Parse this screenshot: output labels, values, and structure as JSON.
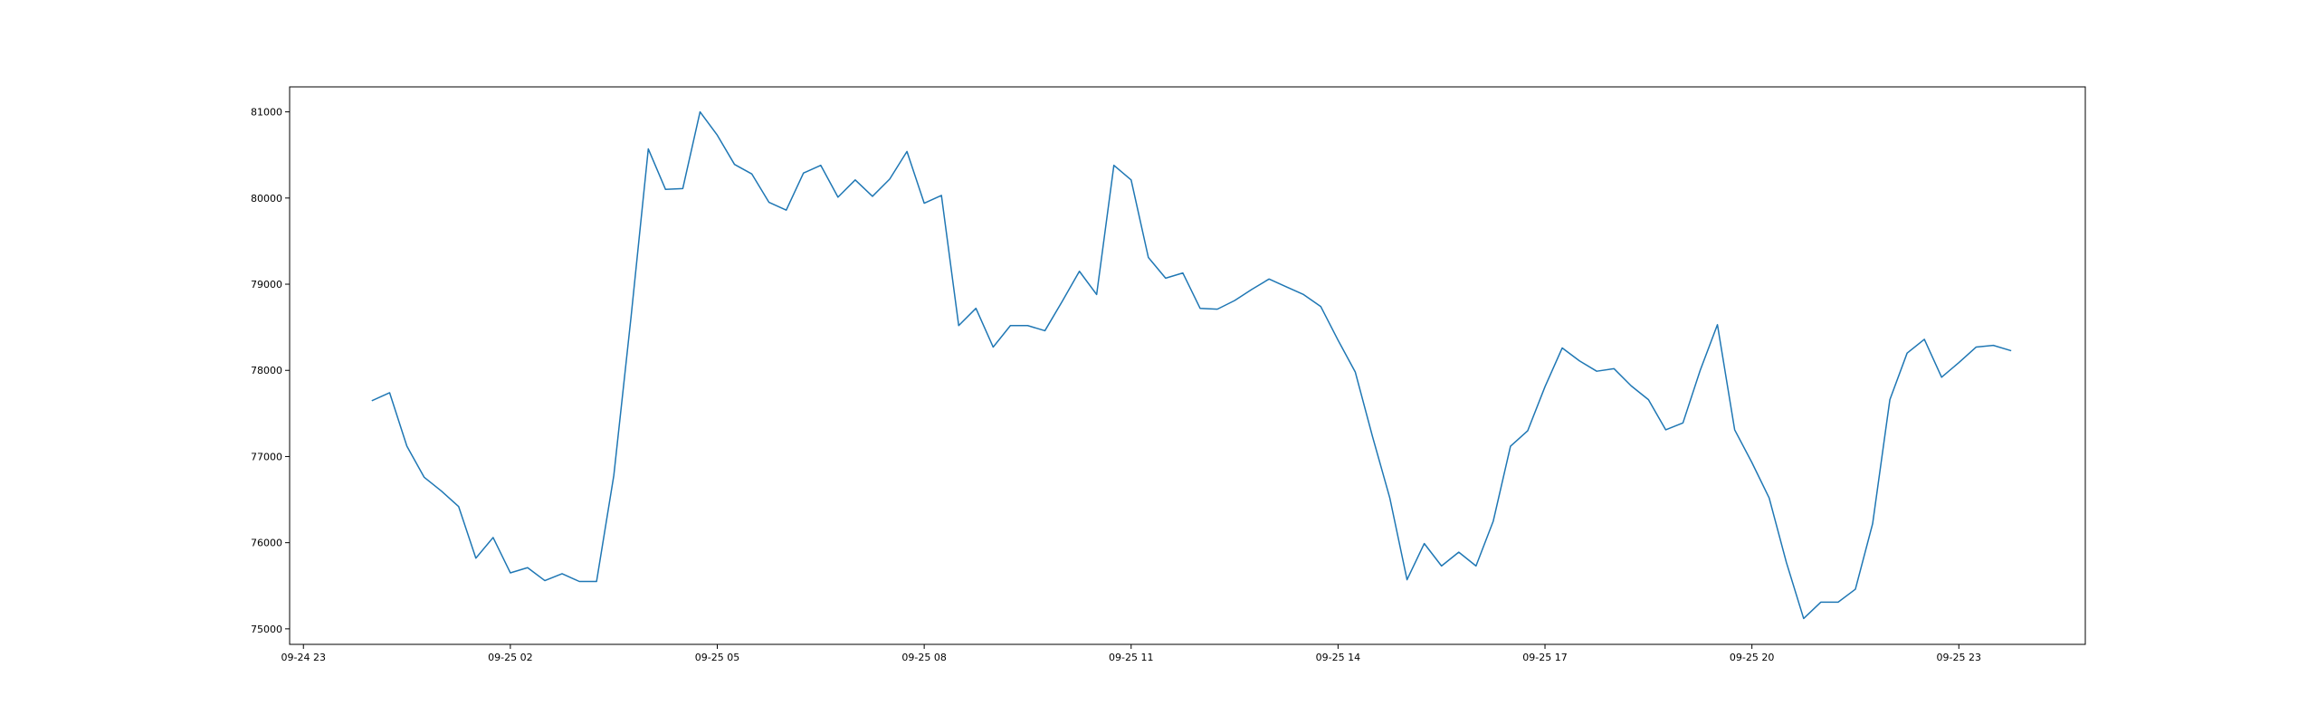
{
  "chart_data": {
    "type": "line",
    "title": "",
    "xlabel": "",
    "ylabel": "",
    "x_ticks": [
      "09-24 23",
      "09-25 02",
      "09-25 05",
      "09-25 08",
      "09-25 11",
      "09-25 14",
      "09-25 17",
      "09-25 20",
      "09-25 23"
    ],
    "y_ticks": [
      75000,
      76000,
      77000,
      78000,
      79000,
      80000,
      81000
    ],
    "x_range": [
      "2024-09-24 22:48",
      "2024-09-26 00:50"
    ],
    "ylim": [
      74820,
      81290
    ],
    "grid": false,
    "legend": "none",
    "line_color": "#1f77b4",
    "series": [
      {
        "x": [
          "2024-09-25 00:00",
          "2024-09-25 00:15",
          "2024-09-25 00:30",
          "2024-09-25 00:45",
          "2024-09-25 01:00",
          "2024-09-25 01:15",
          "2024-09-25 01:30",
          "2024-09-25 01:45",
          "2024-09-25 02:00",
          "2024-09-25 02:15",
          "2024-09-25 02:30",
          "2024-09-25 02:45",
          "2024-09-25 03:00",
          "2024-09-25 03:15",
          "2024-09-25 03:30",
          "2024-09-25 03:45",
          "2024-09-25 04:00",
          "2024-09-25 04:15",
          "2024-09-25 04:30",
          "2024-09-25 04:45",
          "2024-09-25 05:00",
          "2024-09-25 05:15",
          "2024-09-25 05:30",
          "2024-09-25 05:45",
          "2024-09-25 06:00",
          "2024-09-25 06:15",
          "2024-09-25 06:30",
          "2024-09-25 06:45",
          "2024-09-25 07:00",
          "2024-09-25 07:15",
          "2024-09-25 07:30",
          "2024-09-25 07:45",
          "2024-09-25 08:00",
          "2024-09-25 08:15",
          "2024-09-25 08:30",
          "2024-09-25 08:45",
          "2024-09-25 09:00",
          "2024-09-25 09:15",
          "2024-09-25 09:30",
          "2024-09-25 09:45",
          "2024-09-25 10:00",
          "2024-09-25 10:15",
          "2024-09-25 10:30",
          "2024-09-25 10:45",
          "2024-09-25 11:00",
          "2024-09-25 11:15",
          "2024-09-25 11:30",
          "2024-09-25 11:45",
          "2024-09-25 12:00",
          "2024-09-25 12:15",
          "2024-09-25 12:30",
          "2024-09-25 12:45",
          "2024-09-25 13:00",
          "2024-09-25 13:15",
          "2024-09-25 13:30",
          "2024-09-25 13:45",
          "2024-09-25 14:00",
          "2024-09-25 14:15",
          "2024-09-25 14:30",
          "2024-09-25 14:45",
          "2024-09-25 15:00",
          "2024-09-25 15:15",
          "2024-09-25 15:30",
          "2024-09-25 15:45",
          "2024-09-25 16:00",
          "2024-09-25 16:15",
          "2024-09-25 16:30",
          "2024-09-25 16:45",
          "2024-09-25 17:00",
          "2024-09-25 17:15",
          "2024-09-25 17:30",
          "2024-09-25 17:45",
          "2024-09-25 18:00",
          "2024-09-25 18:15",
          "2024-09-25 18:30",
          "2024-09-25 18:45",
          "2024-09-25 19:00",
          "2024-09-25 19:15",
          "2024-09-25 19:30",
          "2024-09-25 19:45",
          "2024-09-25 20:00",
          "2024-09-25 20:15",
          "2024-09-25 20:30",
          "2024-09-25 20:45",
          "2024-09-25 21:00",
          "2024-09-25 21:15",
          "2024-09-25 21:30",
          "2024-09-25 21:45",
          "2024-09-25 22:00",
          "2024-09-25 22:15",
          "2024-09-25 22:30",
          "2024-09-25 22:45",
          "2024-09-25 23:00",
          "2024-09-25 23:15",
          "2024-09-25 23:30",
          "2024-09-25 23:45"
        ],
        "values": [
          77650,
          77740,
          77120,
          76760,
          76600,
          76420,
          75820,
          76060,
          75650,
          75710,
          75560,
          75640,
          75550,
          75550,
          76780,
          78620,
          80570,
          80100,
          80110,
          81000,
          80730,
          80390,
          80280,
          79950,
          79860,
          80290,
          80380,
          80010,
          80210,
          80020,
          80220,
          80540,
          79940,
          80030,
          78520,
          78720,
          78270,
          78520,
          78520,
          78460,
          78800,
          79150,
          78880,
          80380,
          80210,
          79310,
          79070,
          79130,
          78720,
          78710,
          78810,
          78940,
          79060,
          78970,
          78880,
          78740,
          78350,
          77980,
          77230,
          76520,
          75570,
          75990,
          75730,
          75890,
          75730,
          76250,
          77120,
          77300,
          77810,
          78260,
          78110,
          77990,
          78020,
          77820,
          77660,
          77310,
          77390,
          78000,
          78530,
          77310,
          76930,
          76520,
          75770,
          75120,
          75310,
          75310,
          75460,
          76220,
          77660,
          78200,
          78360,
          77920,
          78090,
          78270,
          78290,
          78230
        ]
      }
    ]
  }
}
